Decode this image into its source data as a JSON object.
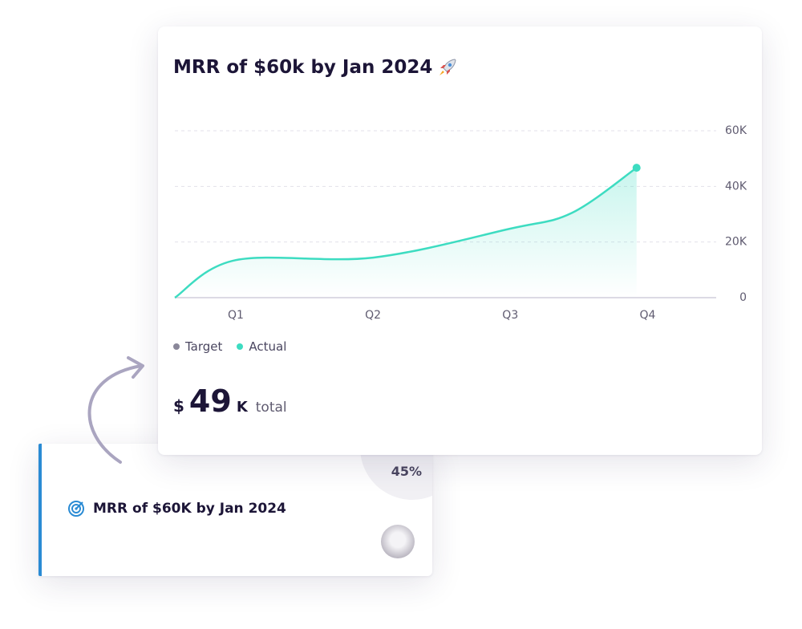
{
  "chart_data": {
    "type": "line",
    "title": "MRR of $60k by Jan 2024",
    "x": [
      0.556,
      1,
      2,
      3,
      3.45,
      3.92
    ],
    "xticks": [
      {
        "value": 1,
        "label": "Q1"
      },
      {
        "value": 2,
        "label": "Q2"
      },
      {
        "value": 3,
        "label": "Q3"
      },
      {
        "value": 4,
        "label": "Q4"
      }
    ],
    "xlim": [
      0.556,
      4.5
    ],
    "series": [
      {
        "name": "Target",
        "color": "#8a8799",
        "values": [
          null,
          null,
          null,
          null,
          null,
          null
        ]
      },
      {
        "name": "Actual",
        "color": "#3ddcc1",
        "values": [
          0,
          13.5,
          14.4,
          24.8,
          30.5,
          46.7
        ]
      }
    ],
    "ylim": [
      0,
      60
    ],
    "yticks": [
      0,
      {
        "value": 20,
        "label": "20K"
      },
      {
        "value": 40,
        "label": "40K"
      },
      {
        "value": 60,
        "label": "60K"
      }
    ],
    "grid": true
  },
  "summary": {
    "currency": "$",
    "value": "49",
    "unit": "K",
    "label": "total"
  },
  "goal_card": {
    "progress": "45%",
    "title": "MRR of $60K by Jan 2024"
  }
}
